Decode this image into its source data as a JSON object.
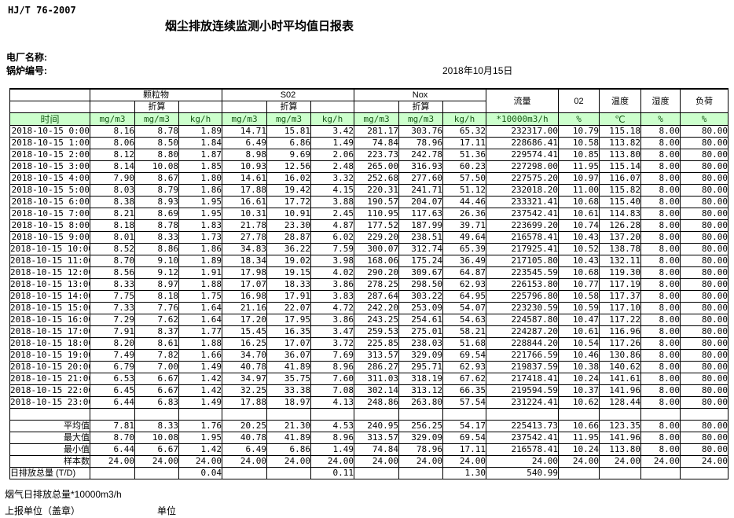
{
  "meta": {
    "standard": "HJ/T  76-2007",
    "title": "烟尘排放连续监测小时平均值日报表",
    "plant_label": "电厂名称:",
    "boiler_label": "锅炉编号:",
    "date": "2018年10月15日"
  },
  "colors": {
    "unit_row_bg": "#ccffcc",
    "unit_row_text": "#155915",
    "border": "#000000"
  },
  "table": {
    "headers": {
      "pm": "颗粒物",
      "so2": "S02",
      "nox": "Nox",
      "converted": "折算",
      "flow": "流量",
      "o2": "02",
      "temp": "温度",
      "humidity": "湿度",
      "load": "负荷"
    },
    "unit_row": [
      "时间",
      "mg/m3",
      "mg/m3",
      "kg/h",
      "mg/m3",
      "mg/m3",
      "kg/h",
      "mg/m3",
      "mg/m3",
      "kg/h",
      "*10000m3/h",
      "%",
      "℃",
      "%",
      "%"
    ],
    "rows": [
      [
        "2018-10-15 0:00",
        "8.16",
        "8.78",
        "1.89",
        "14.71",
        "15.81",
        "3.42",
        "281.17",
        "303.76",
        "65.32",
        "232317.00",
        "10.79",
        "115.18",
        "8.00",
        "80.00"
      ],
      [
        "2018-10-15 1:00",
        "8.06",
        "8.50",
        "1.84",
        "6.49",
        "6.86",
        "1.49",
        "74.84",
        "78.96",
        "17.11",
        "228686.41",
        "10.58",
        "113.82",
        "8.00",
        "80.00"
      ],
      [
        "2018-10-15 2:00",
        "8.12",
        "8.80",
        "1.87",
        "8.98",
        "9.69",
        "2.06",
        "223.73",
        "242.78",
        "51.36",
        "229574.41",
        "10.85",
        "113.80",
        "8.00",
        "80.00"
      ],
      [
        "2018-10-15 3:00",
        "8.14",
        "10.08",
        "1.85",
        "10.93",
        "12.56",
        "2.48",
        "265.00",
        "316.93",
        "60.23",
        "227298.00",
        "11.95",
        "115.14",
        "8.00",
        "80.00"
      ],
      [
        "2018-10-15 4:00",
        "7.90",
        "8.67",
        "1.80",
        "14.61",
        "16.02",
        "3.32",
        "252.68",
        "277.60",
        "57.50",
        "227575.20",
        "10.97",
        "116.07",
        "8.00",
        "80.00"
      ],
      [
        "2018-10-15 5:00",
        "8.03",
        "8.79",
        "1.86",
        "17.88",
        "19.42",
        "4.15",
        "220.31",
        "241.71",
        "51.12",
        "232018.20",
        "11.00",
        "115.82",
        "8.00",
        "80.00"
      ],
      [
        "2018-10-15 6:00",
        "8.38",
        "8.93",
        "1.95",
        "16.61",
        "17.72",
        "3.88",
        "190.57",
        "204.07",
        "44.46",
        "233321.41",
        "10.68",
        "115.40",
        "8.00",
        "80.00"
      ],
      [
        "2018-10-15 7:00",
        "8.21",
        "8.69",
        "1.95",
        "10.31",
        "10.91",
        "2.45",
        "110.95",
        "117.63",
        "26.36",
        "237542.41",
        "10.61",
        "114.83",
        "8.00",
        "80.00"
      ],
      [
        "2018-10-15 8:00",
        "8.18",
        "8.78",
        "1.83",
        "21.78",
        "23.30",
        "4.87",
        "177.52",
        "187.99",
        "39.71",
        "223699.20",
        "10.74",
        "126.28",
        "8.00",
        "80.00"
      ],
      [
        "2018-10-15 9:00",
        "8.01",
        "8.33",
        "1.73",
        "27.78",
        "28.87",
        "6.02",
        "229.20",
        "238.51",
        "49.64",
        "216578.41",
        "10.43",
        "137.20",
        "8.00",
        "80.00"
      ],
      [
        "2018-10-15 10:00",
        "8.52",
        "8.86",
        "1.86",
        "34.83",
        "36.22",
        "7.59",
        "300.07",
        "312.74",
        "65.39",
        "217925.41",
        "10.52",
        "138.78",
        "8.00",
        "80.00"
      ],
      [
        "2018-10-15 11:00",
        "8.70",
        "9.10",
        "1.89",
        "18.34",
        "19.02",
        "3.98",
        "168.06",
        "175.24",
        "36.49",
        "217105.80",
        "10.43",
        "132.11",
        "8.00",
        "80.00"
      ],
      [
        "2018-10-15 12:00",
        "8.56",
        "9.12",
        "1.91",
        "17.98",
        "19.15",
        "4.02",
        "290.20",
        "309.67",
        "64.87",
        "223545.59",
        "10.68",
        "119.30",
        "8.00",
        "80.00"
      ],
      [
        "2018-10-15 13:00",
        "8.33",
        "8.97",
        "1.88",
        "17.07",
        "18.33",
        "3.86",
        "278.25",
        "298.50",
        "62.93",
        "226153.80",
        "10.77",
        "117.19",
        "8.00",
        "80.00"
      ],
      [
        "2018-10-15 14:00",
        "7.75",
        "8.18",
        "1.75",
        "16.98",
        "17.91",
        "3.83",
        "287.64",
        "303.22",
        "64.95",
        "225796.80",
        "10.58",
        "117.37",
        "8.00",
        "80.00"
      ],
      [
        "2018-10-15 15:00",
        "7.33",
        "7.76",
        "1.64",
        "21.16",
        "22.07",
        "4.72",
        "242.20",
        "253.09",
        "54.07",
        "223230.59",
        "10.59",
        "117.10",
        "8.00",
        "80.00"
      ],
      [
        "2018-10-15 16:00",
        "7.29",
        "7.62",
        "1.64",
        "17.20",
        "17.95",
        "3.86",
        "243.25",
        "254.61",
        "54.63",
        "224587.80",
        "10.47",
        "117.22",
        "8.00",
        "80.00"
      ],
      [
        "2018-10-15 17:00",
        "7.91",
        "8.37",
        "1.77",
        "15.45",
        "16.35",
        "3.47",
        "259.53",
        "275.01",
        "58.21",
        "224287.20",
        "10.61",
        "116.96",
        "8.00",
        "80.00"
      ],
      [
        "2018-10-15 18:00",
        "8.20",
        "8.61",
        "1.88",
        "16.25",
        "17.07",
        "3.72",
        "225.85",
        "238.03",
        "51.68",
        "228844.20",
        "10.54",
        "117.26",
        "8.00",
        "80.00"
      ],
      [
        "2018-10-15 19:00",
        "7.49",
        "7.82",
        "1.66",
        "34.70",
        "36.07",
        "7.69",
        "313.57",
        "329.09",
        "69.54",
        "221766.59",
        "10.46",
        "130.86",
        "8.00",
        "80.00"
      ],
      [
        "2018-10-15 20:00",
        "6.79",
        "7.00",
        "1.49",
        "40.78",
        "41.89",
        "8.96",
        "286.27",
        "295.71",
        "62.93",
        "219837.59",
        "10.38",
        "140.62",
        "8.00",
        "80.00"
      ],
      [
        "2018-10-15 21:00",
        "6.53",
        "6.67",
        "1.42",
        "34.97",
        "35.75",
        "7.60",
        "311.03",
        "318.19",
        "67.62",
        "217418.41",
        "10.24",
        "141.61",
        "8.00",
        "80.00"
      ],
      [
        "2018-10-15 22:00",
        "6.45",
        "6.67",
        "1.42",
        "32.25",
        "33.38",
        "7.08",
        "302.14",
        "313.12",
        "66.35",
        "219594.59",
        "10.37",
        "141.96",
        "8.00",
        "80.00"
      ],
      [
        "2018-10-15 23:00",
        "6.44",
        "6.83",
        "1.49",
        "17.88",
        "18.97",
        "4.13",
        "248.86",
        "263.80",
        "57.54",
        "231224.41",
        "10.62",
        "128.44",
        "8.00",
        "80.00"
      ]
    ],
    "summary_rows": [
      {
        "label": "平均值",
        "values": [
          "7.81",
          "8.33",
          "1.76",
          "20.25",
          "21.30",
          "4.53",
          "240.95",
          "256.25",
          "54.17",
          "225413.73",
          "10.66",
          "123.35",
          "8.00",
          "80.00"
        ]
      },
      {
        "label": "最大值",
        "values": [
          "8.70",
          "10.08",
          "1.95",
          "40.78",
          "41.89",
          "8.96",
          "313.57",
          "329.09",
          "69.54",
          "237542.41",
          "11.95",
          "141.96",
          "8.00",
          "80.00"
        ]
      },
      {
        "label": "最小值",
        "values": [
          "6.44",
          "6.67",
          "1.42",
          "6.49",
          "6.86",
          "1.49",
          "74.84",
          "78.96",
          "17.11",
          "216578.41",
          "10.24",
          "113.80",
          "8.00",
          "80.00"
        ]
      },
      {
        "label": "样本数",
        "values": [
          "24.00",
          "24.00",
          "24.00",
          "24.00",
          "24.00",
          "24.00",
          "24.00",
          "24.00",
          "24.00",
          "24.00",
          "24.00",
          "24.00",
          "24.00",
          "24.00"
        ]
      },
      {
        "label": "日排放总量 (T/D)",
        "values": [
          "",
          "",
          "0.04",
          "",
          "",
          "0.11",
          "",
          "",
          "1.30",
          "540.99",
          "",
          "",
          "",
          ""
        ]
      }
    ]
  },
  "footer": {
    "line1": "烟气日排放总量*10000m3/h",
    "line2_left": "上报单位（盖章）",
    "line2_right": "单位"
  }
}
